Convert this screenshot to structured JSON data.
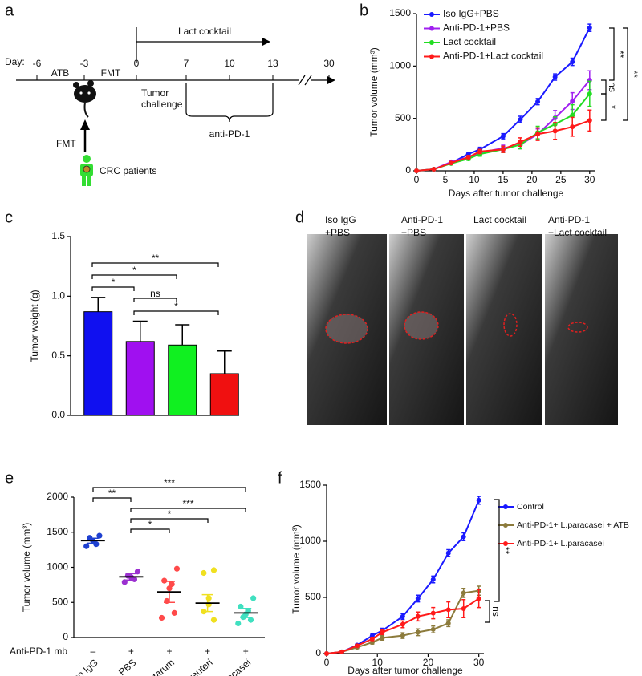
{
  "panels": [
    "a",
    "b",
    "c",
    "d",
    "e",
    "f"
  ],
  "diagram_a": {
    "day_label": "Day:",
    "days": [
      -6,
      -3,
      0,
      7,
      10,
      13,
      30
    ],
    "atb": "ATB",
    "fmt": "FMT",
    "lact": "Lact cocktail",
    "tumor": [
      "Tumor",
      "challenge"
    ],
    "anti": "anti-PD-1",
    "fmt_arrow": "FMT",
    "patients": "CRC patients"
  },
  "photos_d": {
    "labels": [
      [
        "Iso IgG",
        "+PBS"
      ],
      [
        "Anti-PD-1",
        "+PBS"
      ],
      [
        "Lact cocktail"
      ],
      [
        "Anti-PD-1",
        "+Lact cocktail"
      ]
    ]
  },
  "chart_data": [
    {
      "type": "line",
      "x": [
        0,
        3,
        6,
        9,
        11,
        15,
        18,
        21,
        24,
        27,
        30
      ],
      "xlim": [
        0,
        31
      ],
      "xticks": [
        0,
        5,
        10,
        15,
        20,
        25,
        30
      ],
      "ylim": [
        0,
        1500
      ],
      "yticks": [
        0,
        500,
        1000,
        1500
      ],
      "xlabel": "Days after tumor challenge",
      "ylabel": "Tumor volume (mm³)",
      "legend": "upper left",
      "series": [
        {
          "name": "Iso IgG+PBS",
          "color": "#1a1aff",
          "values": [
            0,
            15,
            75,
            160,
            205,
            330,
            490,
            660,
            895,
            1040,
            1365
          ],
          "errors": [
            0,
            5,
            10,
            15,
            20,
            25,
            30,
            30,
            30,
            35,
            35
          ]
        },
        {
          "name": "Anti-PD-1+PBS",
          "color": "#a020f0",
          "values": [
            0,
            15,
            85,
            130,
            175,
            215,
            250,
            350,
            505,
            665,
            865
          ],
          "errors": [
            0,
            5,
            10,
            15,
            20,
            30,
            40,
            50,
            70,
            80,
            90
          ]
        },
        {
          "name": "Lact cocktail",
          "color": "#22dd22",
          "values": [
            0,
            15,
            70,
            115,
            160,
            205,
            250,
            365,
            445,
            530,
            735
          ],
          "errors": [
            0,
            5,
            10,
            15,
            20,
            30,
            40,
            60,
            70,
            100,
            120
          ]
        },
        {
          "name": "Anti-PD-1+Lact cocktail",
          "color": "#ff1a1a",
          "values": [
            0,
            15,
            75,
            130,
            185,
            205,
            275,
            350,
            380,
            420,
            480
          ],
          "errors": [
            0,
            5,
            10,
            15,
            20,
            30,
            40,
            60,
            80,
            90,
            100
          ]
        }
      ],
      "annotations": [
        {
          "text": "**"
        },
        {
          "text": "**"
        },
        {
          "text": "ns"
        },
        {
          "text": "*"
        }
      ]
    },
    {
      "type": "bar",
      "categories": [
        null,
        null,
        null,
        null
      ],
      "values": [
        0.87,
        0.62,
        0.59,
        0.35
      ],
      "errors": [
        0.12,
        0.17,
        0.17,
        0.19
      ],
      "colors": [
        "#1010f0",
        "#a010f0",
        "#10f020",
        "#f01010"
      ],
      "ylim": [
        0,
        1.5
      ],
      "yticks": [
        {
          "value": 0,
          "label": "0.0"
        },
        0.5,
        {
          "value": 1,
          "label": "1.0"
        },
        1.5
      ],
      "ylabel": "Tumor weight (g)",
      "annotations": [
        {
          "text": "**"
        },
        {
          "text": "*"
        },
        {
          "text": "*"
        },
        {
          "text": "ns"
        },
        {
          "text": "*"
        }
      ]
    },
    {
      "type": "dot",
      "categories": [
        "Iso IgG",
        "PBS",
        "L.plantarum",
        "L.reuteri",
        "L.paracasei"
      ],
      "row_label": "Anti-PD-1 mb",
      "row_values": [
        "–",
        "+",
        "+",
        "+",
        "+"
      ],
      "points": [
        [
          1450,
          1420,
          1380,
          1330,
          1300
        ],
        [
          940,
          880,
          860,
          830,
          790
        ],
        [
          980,
          810,
          760,
          700,
          520,
          350,
          280
        ],
        [
          960,
          920,
          560,
          470,
          370,
          250
        ],
        [
          560,
          440,
          380,
          330,
          290,
          250,
          200
        ]
      ],
      "means": [
        1380,
        865,
        650,
        490,
        350
      ],
      "errors": [
        35,
        45,
        150,
        120,
        65
      ],
      "colors": [
        "#1e40d0",
        "#9b30d0",
        "#ff4a4a",
        "#f0e020",
        "#40e0c0"
      ],
      "ylim": [
        0,
        2000
      ],
      "yticks": [
        0,
        500,
        1000,
        1500,
        2000
      ],
      "ylabel": "Tumor volume (mm³)",
      "annotations": [
        {
          "text": "***"
        },
        {
          "text": "**"
        },
        {
          "text": "***"
        },
        {
          "text": "*"
        },
        {
          "text": "*"
        }
      ]
    },
    {
      "type": "line",
      "x": [
        0,
        3,
        6,
        9,
        11,
        15,
        18,
        21,
        24,
        27,
        30
      ],
      "xlim": [
        0,
        31
      ],
      "xticks": [
        0,
        10,
        20,
        30
      ],
      "ylim": [
        0,
        1500
      ],
      "yticks": [
        0,
        500,
        1000,
        1500
      ],
      "xlabel": "Days after tumor challenge",
      "ylabel": "Tumor volume (mm³)",
      "legend": "right",
      "series": [
        {
          "name": "Control",
          "color": "#1a1aff",
          "values": [
            0,
            15,
            75,
            160,
            205,
            330,
            490,
            660,
            895,
            1040,
            1365
          ],
          "errors": [
            0,
            5,
            10,
            15,
            20,
            25,
            30,
            30,
            30,
            35,
            35
          ]
        },
        {
          "name": "Anti-PD-1+ L.paracasei + ATB",
          "color": "#8c7b3c",
          "values": [
            0,
            15,
            55,
            100,
            140,
            160,
            190,
            215,
            270,
            540,
            560
          ],
          "errors": [
            0,
            5,
            10,
            15,
            20,
            25,
            30,
            30,
            30,
            40,
            40
          ]
        },
        {
          "name": "Anti-PD-1+ L.paracasei",
          "color": "#ff1a1a",
          "values": [
            0,
            15,
            70,
            130,
            190,
            260,
            330,
            360,
            390,
            400,
            490
          ],
          "errors": [
            0,
            5,
            10,
            15,
            20,
            30,
            40,
            50,
            70,
            80,
            80
          ]
        }
      ],
      "annotations": [
        {
          "text": "**"
        },
        {
          "text": "ns"
        }
      ]
    }
  ]
}
